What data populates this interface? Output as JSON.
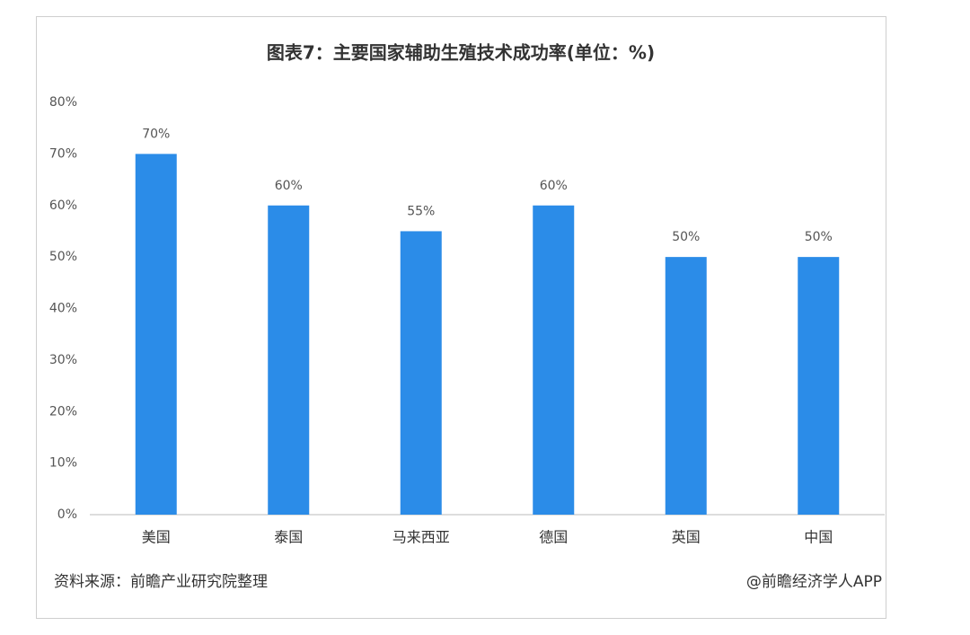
{
  "chart_data": {
    "type": "bar",
    "title": "图表7：主要国家辅助生殖技术成功率(单位：%)",
    "categories": [
      "美国",
      "泰国",
      "马来西亚",
      "德国",
      "英国",
      "中国"
    ],
    "values": [
      70,
      60,
      55,
      60,
      50,
      50
    ],
    "value_labels": [
      "70%",
      "60%",
      "55%",
      "60%",
      "50%",
      "50%"
    ],
    "color": "#2b8ce8",
    "ylim": [
      0,
      80
    ],
    "yticks": [
      {
        "value": 0,
        "label": "0%"
      },
      {
        "value": 10,
        "label": "10%"
      },
      {
        "value": 20,
        "label": "20%"
      },
      {
        "value": 30,
        "label": "30%"
      },
      {
        "value": 40,
        "label": "40%"
      },
      {
        "value": 50,
        "label": "50%"
      },
      {
        "value": 60,
        "label": "60%"
      },
      {
        "value": 70,
        "label": "70%"
      },
      {
        "value": 80,
        "label": "80%"
      }
    ],
    "grid": false,
    "source": "资料来源：前瞻产业研究院整理",
    "credit": "@前瞻经济学人APP"
  }
}
